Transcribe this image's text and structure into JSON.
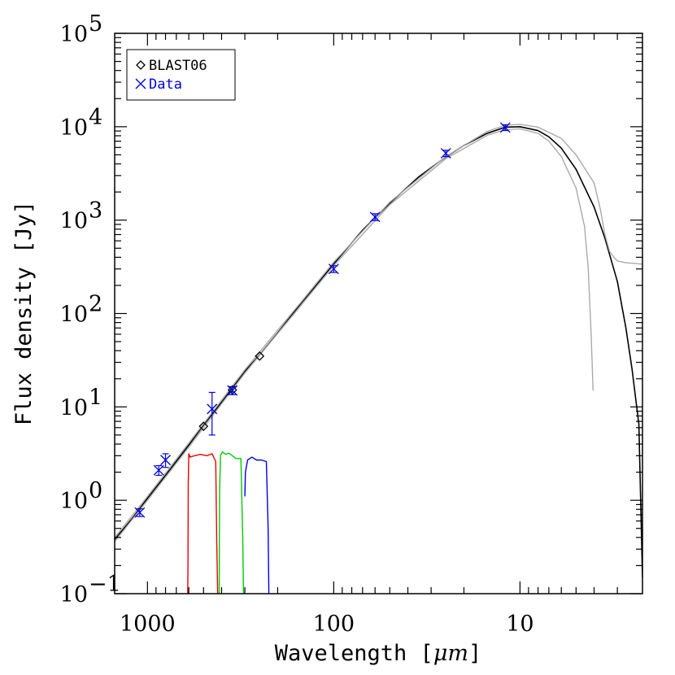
{
  "chart_data": {
    "type": "scatter",
    "xlabel": "Wavelength [",
    "xlabel_unit": "μm",
    "xlabel_end": "]",
    "ylabel": "Flux density [Jy]",
    "x_scale": "log",
    "y_scale": "log",
    "x_reversed": true,
    "xlim": [
      1500,
      2.2
    ],
    "ylim": [
      0.1,
      100000
    ],
    "x_ticks": [
      {
        "value": 1000,
        "label": "1000"
      },
      {
        "value": 100,
        "label": "100"
      },
      {
        "value": 10,
        "label": "10"
      }
    ],
    "y_ticks": [
      {
        "value": 0.1,
        "base": "10",
        "exp": "−1"
      },
      {
        "value": 1,
        "base": "10",
        "exp": "0"
      },
      {
        "value": 10,
        "base": "10",
        "exp": "1"
      },
      {
        "value": 100,
        "base": "10",
        "exp": "2"
      },
      {
        "value": 1000,
        "base": "10",
        "exp": "3"
      },
      {
        "value": 10000,
        "base": "10",
        "exp": "4"
      },
      {
        "value": 100000,
        "base": "10",
        "exp": "5"
      }
    ],
    "legend": {
      "position": "top-left",
      "entries": [
        {
          "label": "BLAST06",
          "marker": "diamond",
          "color": "#000000"
        },
        {
          "label": "Data",
          "marker": "x",
          "color": "#0000dd"
        }
      ]
    },
    "series": [
      {
        "name": "BLAST06",
        "marker": "diamond",
        "color": "#000000",
        "points": [
          {
            "x": 500,
            "y": 6.2
          },
          {
            "x": 350,
            "y": 15.2
          },
          {
            "x": 250,
            "y": 35
          }
        ]
      },
      {
        "name": "Data",
        "marker": "x",
        "color": "#0000dd",
        "points": [
          {
            "x": 1100,
            "y": 0.74,
            "err": 0.07
          },
          {
            "x": 870,
            "y": 2.1,
            "err": 0.25
          },
          {
            "x": 800,
            "y": 2.7,
            "err": 0.45
          },
          {
            "x": 450,
            "y": 9.5,
            "err_lo": 4.5,
            "err_hi": 4.8
          },
          {
            "x": 350,
            "y": 15,
            "err": 1.5
          },
          {
            "x": 100,
            "y": 300,
            "err": 25
          },
          {
            "x": 60,
            "y": 1080,
            "err": 90
          },
          {
            "x": 25,
            "y": 5200,
            "err": 400
          },
          {
            "x": 12,
            "y": 9800,
            "err": 700
          }
        ]
      }
    ],
    "model_curves": [
      {
        "color": "#000000",
        "points": [
          [
            1500,
            0.38
          ],
          [
            1200,
            0.65
          ],
          [
            1000,
            1.05
          ],
          [
            800,
            1.85
          ],
          [
            600,
            3.9
          ],
          [
            500,
            6.4
          ],
          [
            400,
            11.2
          ],
          [
            300,
            24
          ],
          [
            250,
            36
          ],
          [
            200,
            62
          ],
          [
            150,
            128
          ],
          [
            100,
            340
          ],
          [
            70,
            780
          ],
          [
            50,
            1520
          ],
          [
            35,
            2900
          ],
          [
            25,
            4750
          ],
          [
            20,
            6300
          ],
          [
            15,
            8500
          ],
          [
            12,
            9900
          ],
          [
            10,
            10000
          ],
          [
            8,
            9100
          ],
          [
            7,
            7800
          ],
          [
            6,
            5900
          ],
          [
            5,
            3500
          ],
          [
            4,
            1380
          ],
          [
            3.5,
            640
          ],
          [
            3,
            220
          ],
          [
            2.7,
            70
          ],
          [
            2.5,
            25
          ],
          [
            2.3,
            6.5
          ],
          [
            2.2,
            0.15
          ]
        ]
      },
      {
        "color": "#aaaaaa",
        "points": [
          [
            1500,
            0.4
          ],
          [
            1000,
            1.1
          ],
          [
            600,
            4.1
          ],
          [
            300,
            25
          ],
          [
            150,
            132
          ],
          [
            100,
            355
          ],
          [
            50,
            1560
          ],
          [
            25,
            4800
          ],
          [
            15,
            8900
          ],
          [
            12,
            10400
          ],
          [
            10,
            10600
          ],
          [
            8,
            9900
          ],
          [
            6,
            7500
          ],
          [
            5,
            5000
          ],
          [
            4,
            2500
          ],
          [
            3.7,
            1300
          ],
          [
            3.5,
            700
          ],
          [
            3.3,
            460
          ],
          [
            3.1,
            390
          ],
          [
            3.0,
            365
          ],
          [
            2.7,
            350
          ],
          [
            2.5,
            345
          ],
          [
            2.3,
            340
          ],
          [
            2.2,
            338
          ]
        ]
      },
      {
        "color": "#aaaaaa",
        "points": [
          [
            1500,
            0.36
          ],
          [
            1000,
            1.0
          ],
          [
            600,
            3.7
          ],
          [
            300,
            23
          ],
          [
            150,
            122
          ],
          [
            100,
            325
          ],
          [
            50,
            1460
          ],
          [
            25,
            4550
          ],
          [
            15,
            8100
          ],
          [
            12,
            9300
          ],
          [
            10,
            9500
          ],
          [
            8,
            8500
          ],
          [
            7,
            7000
          ],
          [
            6,
            4800
          ],
          [
            5,
            2200
          ],
          [
            4.5,
            850
          ],
          [
            4.3,
            300
          ],
          [
            4.15,
            60
          ],
          [
            4.05,
            15
          ]
        ]
      }
    ],
    "bandpass_curves": [
      {
        "name": "red",
        "color": "#ee0000",
        "points": [
          [
            608,
            0.1
          ],
          [
            606,
            0.2
          ],
          [
            604,
            1.5
          ],
          [
            600,
            3.15
          ],
          [
            590,
            2.9
          ],
          [
            560,
            3.0
          ],
          [
            520,
            3.1
          ],
          [
            480,
            3.0
          ],
          [
            450,
            3.15
          ],
          [
            430,
            2.6
          ],
          [
            425,
            0.4
          ],
          [
            420,
            0.1
          ]
        ]
      },
      {
        "name": "green",
        "color": "#00cc00",
        "points": [
          [
            412,
            0.1
          ],
          [
            410,
            1.3
          ],
          [
            405,
            3.05
          ],
          [
            395,
            3.3
          ],
          [
            380,
            3.1
          ],
          [
            365,
            3.2
          ],
          [
            350,
            3.0
          ],
          [
            335,
            2.8
          ],
          [
            315,
            2.8
          ],
          [
            308,
            0.4
          ],
          [
            305,
            0.1
          ]
        ]
      },
      {
        "name": "blue",
        "color": "#0000ee",
        "points": [
          [
            300,
            1.1
          ],
          [
            298,
            2.0
          ],
          [
            290,
            2.7
          ],
          [
            275,
            2.9
          ],
          [
            260,
            2.7
          ],
          [
            245,
            2.7
          ],
          [
            230,
            2.6
          ],
          [
            225,
            0.5
          ],
          [
            223,
            0.1
          ]
        ]
      }
    ]
  }
}
